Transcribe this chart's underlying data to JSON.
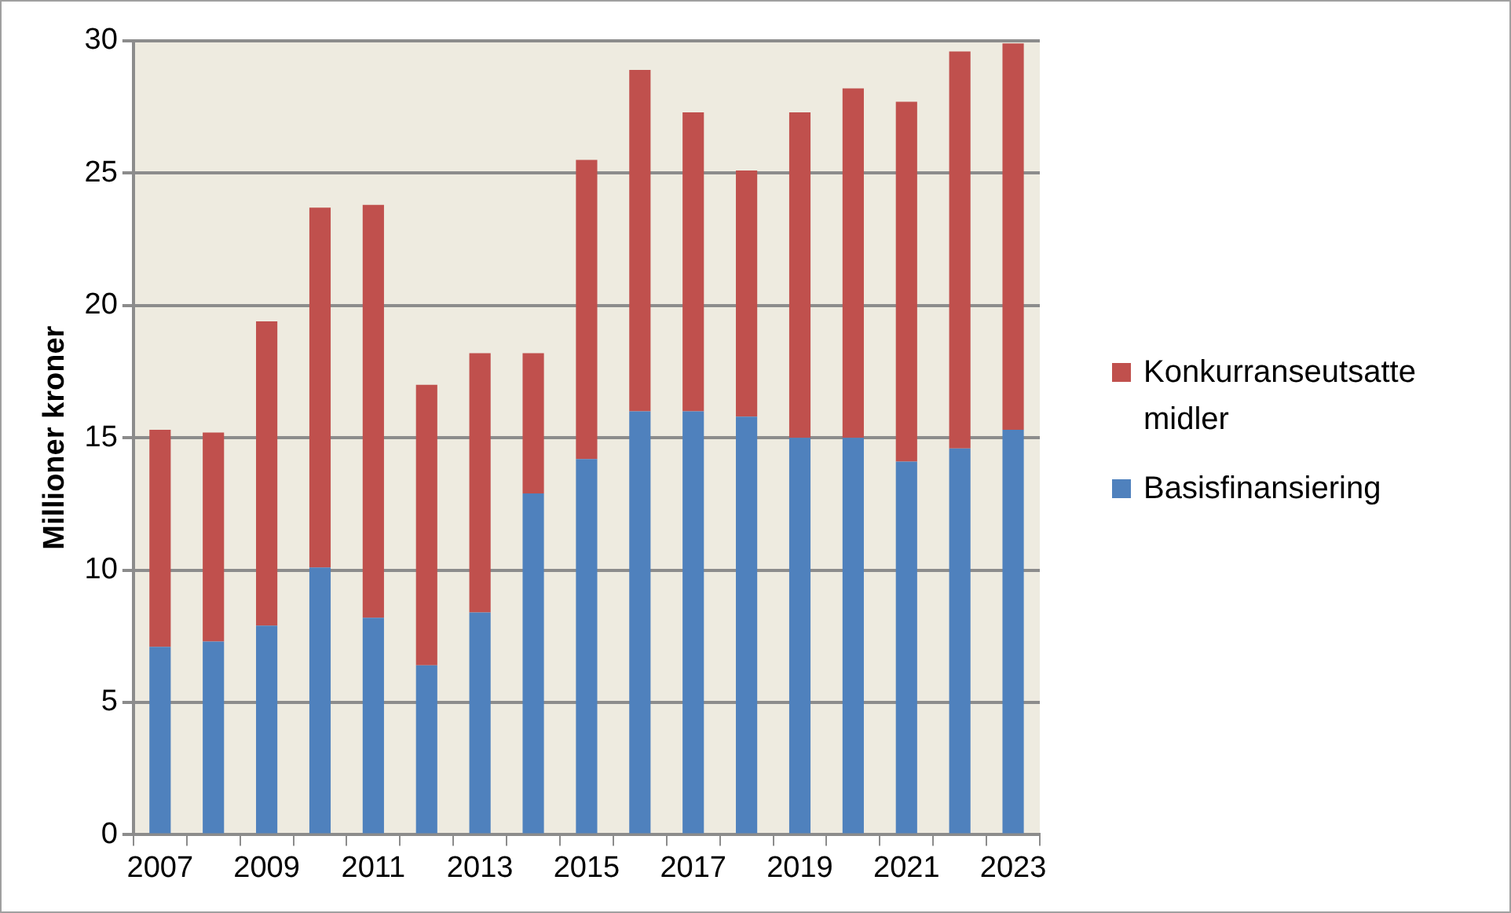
{
  "chart_data": {
    "type": "bar",
    "stacked": true,
    "ylabel": "Millioner kroner",
    "categories": [
      "2007",
      null,
      "2009",
      null,
      "2011",
      null,
      "2013",
      null,
      "2015",
      null,
      "2017",
      null,
      "2019",
      null,
      "2021",
      null,
      "2023"
    ],
    "series": [
      {
        "name": "Basisfinansiering",
        "color": "#4f81bd",
        "values": [
          7.1,
          7.3,
          7.9,
          10.1,
          8.2,
          6.4,
          8.4,
          12.9,
          14.2,
          16.0,
          16.0,
          15.8,
          15.0,
          15.0,
          14.1,
          14.6,
          15.3
        ]
      },
      {
        "name": "Konkurranseutsatte midler",
        "color": "#c0504d",
        "values": [
          8.2,
          7.9,
          11.5,
          13.6,
          15.6,
          10.6,
          9.8,
          5.3,
          11.3,
          12.9,
          11.3,
          9.3,
          12.3,
          13.2,
          13.6,
          15.0,
          14.6
        ]
      }
    ],
    "ylim": [
      0,
      30
    ],
    "yticks": [
      0,
      5,
      10,
      15,
      20,
      25,
      30
    ],
    "grid": "y",
    "legend": "right"
  }
}
